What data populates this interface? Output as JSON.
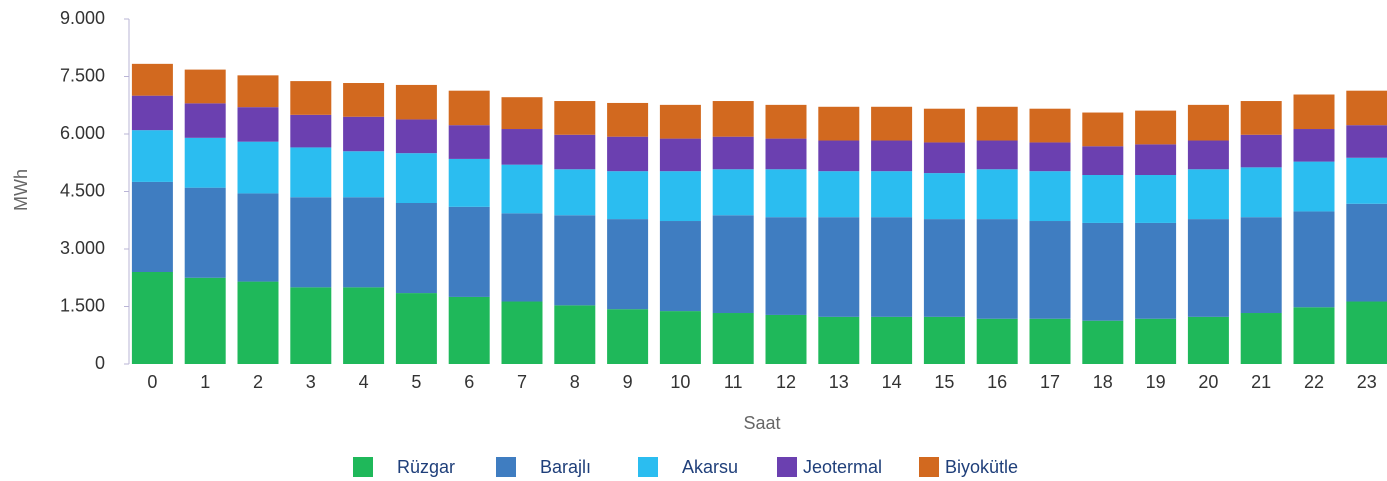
{
  "chart_data": {
    "type": "stacked-bar",
    "xlabel": "Saat",
    "ylabel": "MWh",
    "categories": [
      "0",
      "1",
      "2",
      "3",
      "4",
      "5",
      "6",
      "7",
      "8",
      "9",
      "10",
      "11",
      "12",
      "13",
      "14",
      "15",
      "16",
      "17",
      "18",
      "19",
      "20",
      "21",
      "22",
      "23"
    ],
    "series": [
      {
        "name": "Rüzgar",
        "color": "#1fb85a",
        "values": [
          2400,
          2250,
          2150,
          2000,
          2000,
          1850,
          1750,
          1630,
          1530,
          1430,
          1380,
          1330,
          1280,
          1230,
          1230,
          1230,
          1180,
          1180,
          1130,
          1180,
          1230,
          1330,
          1480,
          1630
        ]
      },
      {
        "name": "Barajlı",
        "color": "#3f7dc1",
        "values": [
          2350,
          2350,
          2300,
          2350,
          2350,
          2350,
          2350,
          2300,
          2350,
          2350,
          2350,
          2550,
          2550,
          2600,
          2600,
          2550,
          2600,
          2550,
          2550,
          2500,
          2550,
          2500,
          2500,
          2550
        ]
      },
      {
        "name": "Akarsu",
        "color": "#2bbdf0",
        "values": [
          1350,
          1300,
          1350,
          1300,
          1200,
          1300,
          1250,
          1270,
          1200,
          1250,
          1300,
          1200,
          1250,
          1200,
          1200,
          1200,
          1300,
          1300,
          1250,
          1250,
          1300,
          1300,
          1300,
          1200
        ]
      },
      {
        "name": "Jeotermal",
        "color": "#6b40b0",
        "values": [
          900,
          900,
          900,
          850,
          900,
          880,
          880,
          930,
          900,
          900,
          850,
          850,
          800,
          800,
          800,
          800,
          750,
          750,
          750,
          800,
          750,
          850,
          850,
          850
        ]
      },
      {
        "name": "Biyokütle",
        "color": "#d2691f",
        "values": [
          830,
          880,
          830,
          880,
          880,
          900,
          900,
          830,
          880,
          880,
          880,
          930,
          880,
          880,
          880,
          880,
          880,
          880,
          880,
          880,
          930,
          880,
          900,
          900
        ]
      }
    ],
    "ylim": [
      0,
      9000
    ],
    "yticks": [
      0,
      {
        "value": 1500,
        "label": "1.500"
      },
      {
        "value": 3000,
        "label": "3.000"
      },
      {
        "value": 4500,
        "label": "4.500"
      },
      {
        "value": 6000,
        "label": "6.000"
      },
      {
        "value": 7500,
        "label": "7.500"
      },
      {
        "value": 9000,
        "label": "9.000"
      }
    ]
  }
}
